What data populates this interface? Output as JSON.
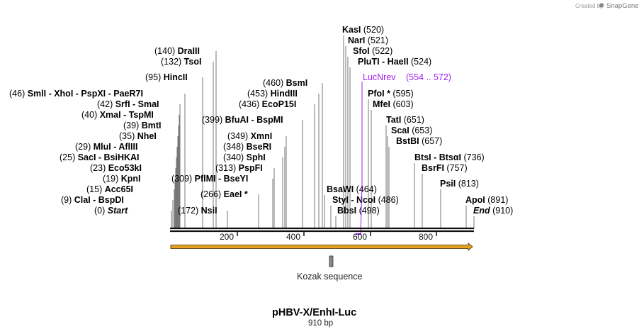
{
  "credit": {
    "prefix": "Created by",
    "brand": "SnapGene"
  },
  "map": {
    "title": "pHBV-X/EnhI-Luc",
    "length": "910 bp",
    "scale_labels": [
      "200",
      "400",
      "600",
      "800"
    ],
    "feature": {
      "label": "Kozak sequence"
    },
    "primer": {
      "name": "LucNrev",
      "range": "(554 .. 572)",
      "color": "#a020f0"
    },
    "arrow_color": "#e8a020"
  },
  "sites": [
    {
      "pos": "(0)",
      "names": [
        "Start"
      ],
      "italic": true
    },
    {
      "pos": "(9)",
      "names": [
        "ClaI",
        "BspDI"
      ]
    },
    {
      "pos": "(15)",
      "names": [
        "Acc65I"
      ]
    },
    {
      "pos": "(19)",
      "names": [
        "KpnI"
      ]
    },
    {
      "pos": "(23)",
      "names": [
        "Eco53kI"
      ]
    },
    {
      "pos": "(25)",
      "names": [
        "SacI",
        "BsiHKAI"
      ]
    },
    {
      "pos": "(29)",
      "names": [
        "MluI",
        "AflIII"
      ]
    },
    {
      "pos": "(35)",
      "names": [
        "NheI"
      ]
    },
    {
      "pos": "(39)",
      "names": [
        "BmtI"
      ]
    },
    {
      "pos": "(40)",
      "names": [
        "XmaI",
        "TspMI"
      ]
    },
    {
      "pos": "(42)",
      "names": [
        "SrfI",
        "SmaI"
      ]
    },
    {
      "pos": "(46)",
      "names": [
        "SmlI",
        "XhoI",
        "PspXI",
        "PaeR7I"
      ]
    },
    {
      "pos": "(95)",
      "names": [
        "HincII"
      ]
    },
    {
      "pos": "(132)",
      "names": [
        "TsoI"
      ]
    },
    {
      "pos": "(140)",
      "names": [
        "DraIII"
      ]
    },
    {
      "pos": "(172)",
      "names": [
        "NsiI"
      ]
    },
    {
      "pos": "(266)",
      "names": [
        "EaeI *"
      ]
    },
    {
      "pos": "(309)",
      "names": [
        "PflMI",
        "BseYI"
      ]
    },
    {
      "pos": "(313)",
      "names": [
        "PspFI"
      ]
    },
    {
      "pos": "(340)",
      "names": [
        "SphI"
      ]
    },
    {
      "pos": "(348)",
      "names": [
        "BseRI"
      ]
    },
    {
      "pos": "(349)",
      "names": [
        "XmnI"
      ]
    },
    {
      "pos": "(399)",
      "names": [
        "BfuAI",
        "BspMI"
      ]
    },
    {
      "pos": "(436)",
      "names": [
        "EcoP15I"
      ]
    },
    {
      "pos": "(453)",
      "names": [
        "HindIII"
      ]
    },
    {
      "pos": "(460)",
      "names": [
        "BsmI"
      ]
    },
    {
      "pos": "(520)",
      "names": [
        "KasI"
      ]
    },
    {
      "pos": "(521)",
      "names": [
        "NarI"
      ]
    },
    {
      "pos": "(522)",
      "names": [
        "SfoI"
      ]
    },
    {
      "pos": "(524)",
      "names": [
        "PluTI",
        "HaeII"
      ]
    },
    {
      "pos": "(464)",
      "names": [
        "BsaWI"
      ]
    },
    {
      "pos": "(486)",
      "names": [
        "StyI",
        "NcoI"
      ]
    },
    {
      "pos": "(498)",
      "names": [
        "BbsI"
      ]
    },
    {
      "pos": "(595)",
      "names": [
        "PfoI *"
      ]
    },
    {
      "pos": "(603)",
      "names": [
        "MfeI"
      ]
    },
    {
      "pos": "(651)",
      "names": [
        "TatI"
      ]
    },
    {
      "pos": "(653)",
      "names": [
        "ScaI"
      ]
    },
    {
      "pos": "(657)",
      "names": [
        "BstBI"
      ]
    },
    {
      "pos": "(736)",
      "names": [
        "BtsI",
        "BtsαI"
      ]
    },
    {
      "pos": "(757)",
      "names": [
        "BsrFI"
      ]
    },
    {
      "pos": "(813)",
      "names": [
        "PsiI"
      ]
    },
    {
      "pos": "(891)",
      "names": [
        "ApoI"
      ]
    },
    {
      "pos": "(910)",
      "names": [
        "End"
      ],
      "italic": true
    }
  ]
}
